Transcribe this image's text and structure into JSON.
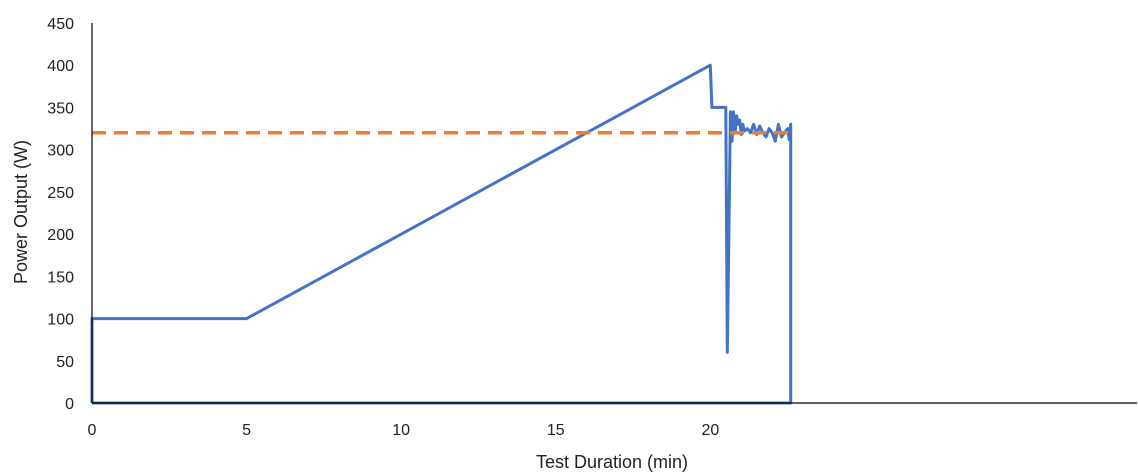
{
  "chart_data": {
    "type": "line",
    "title": "",
    "xlabel": "Test Duration (min)",
    "ylabel": "Power Output (W)",
    "xlim": [
      0,
      33.8
    ],
    "ylim": [
      0,
      450
    ],
    "xticks": [
      0,
      5,
      10,
      15,
      20
    ],
    "yticks": [
      0,
      50,
      100,
      150,
      200,
      250,
      300,
      350,
      400,
      450
    ],
    "grid": false,
    "legend": "none",
    "series": [
      {
        "color": "#4472C4",
        "style": "solid",
        "x": [
          0,
          0,
          5,
          20,
          20.05,
          20.5,
          20.55,
          20.6,
          20.65,
          20.7,
          20.75,
          20.8,
          20.85,
          20.9,
          20.95,
          21.0,
          21.05,
          21.1,
          21.2,
          21.3,
          21.4,
          21.5,
          21.6,
          21.7,
          21.8,
          21.9,
          22.0,
          22.1,
          22.2,
          22.3,
          22.4,
          22.5,
          22.55,
          22.6,
          22.6,
          0
        ],
        "y": [
          0,
          100,
          100,
          400,
          350,
          350,
          60,
          200,
          345,
          310,
          345,
          320,
          340,
          330,
          335,
          318,
          330,
          322,
          325,
          320,
          330,
          318,
          328,
          320,
          315,
          325,
          320,
          310,
          330,
          315,
          320,
          325,
          312,
          330,
          0,
          0
        ]
      },
      {
        "color": "#ED7D31",
        "style": "dashed",
        "x": [
          0,
          22.6
        ],
        "y": [
          320,
          320
        ]
      }
    ]
  }
}
